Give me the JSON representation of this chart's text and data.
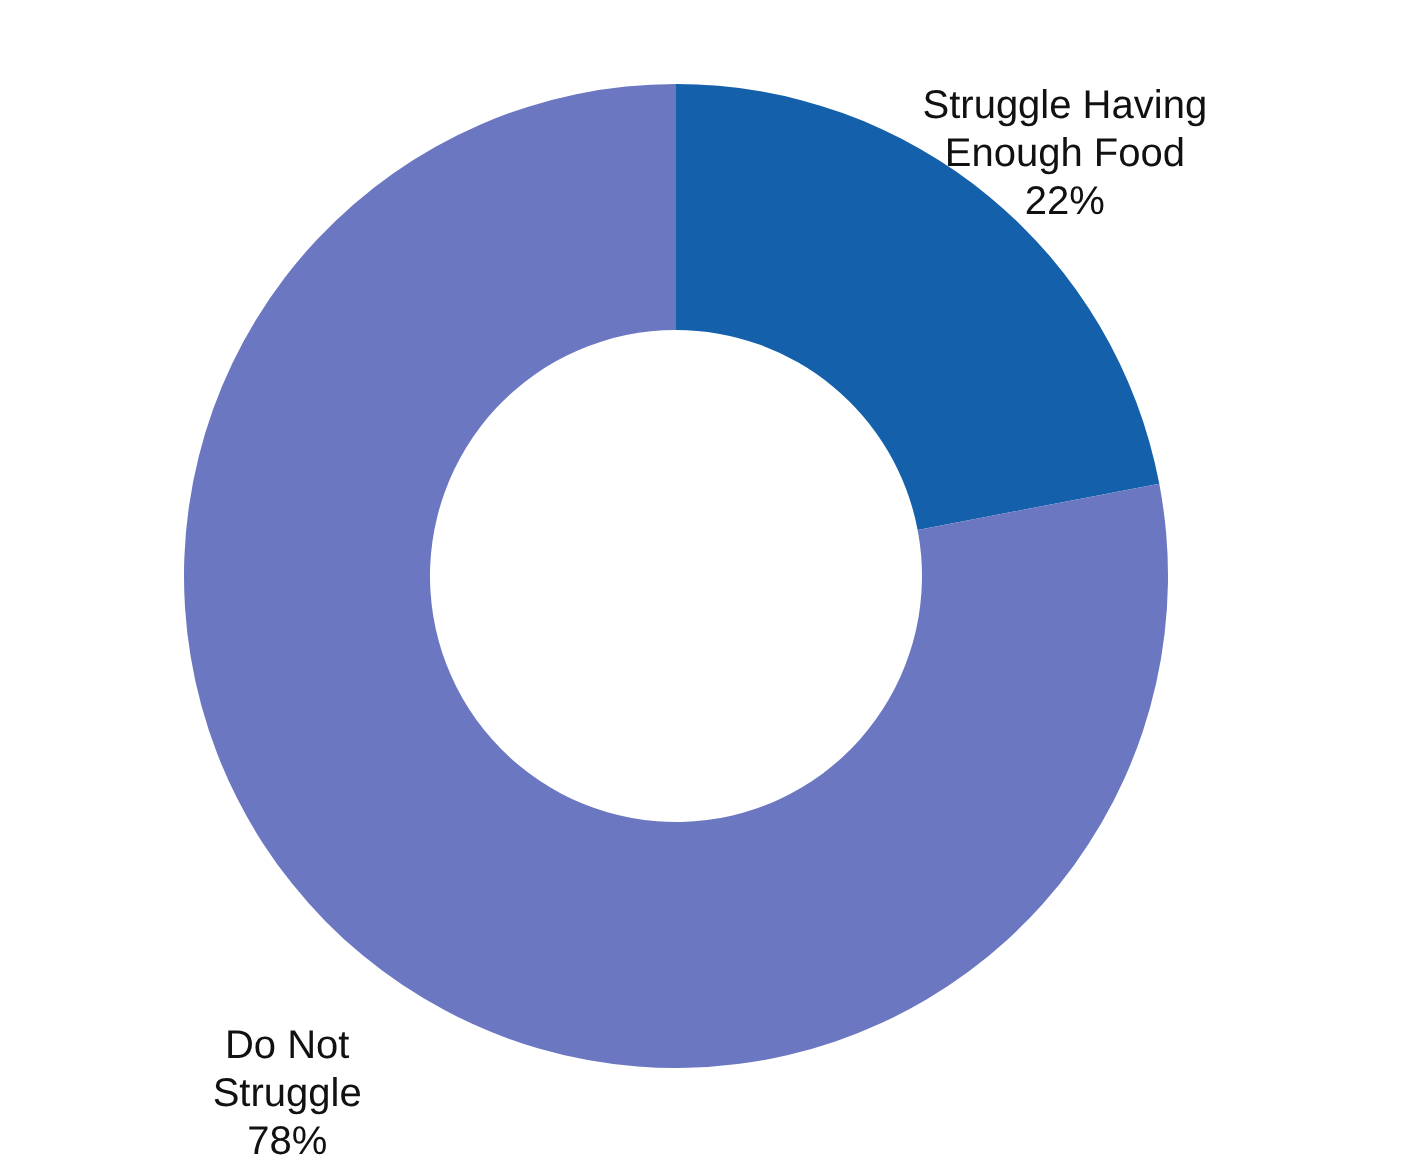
{
  "chart_data": {
    "type": "donut",
    "categories": [
      "Struggle Having Enough Food",
      "Do Not Struggle"
    ],
    "values": [
      22,
      78
    ],
    "value_labels": [
      "22%",
      "78%"
    ],
    "colors": [
      "#1460aa",
      "#6b77c1"
    ]
  }
}
